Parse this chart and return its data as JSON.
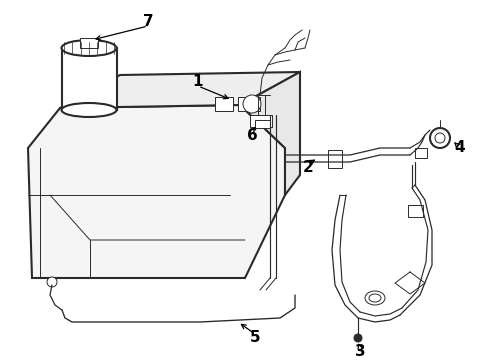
{
  "bg_color": "#ffffff",
  "line_color": "#2a2a2a",
  "label_color": "#000000",
  "label_fontsize": 11,
  "figsize": [
    4.9,
    3.6
  ],
  "dpi": 100
}
